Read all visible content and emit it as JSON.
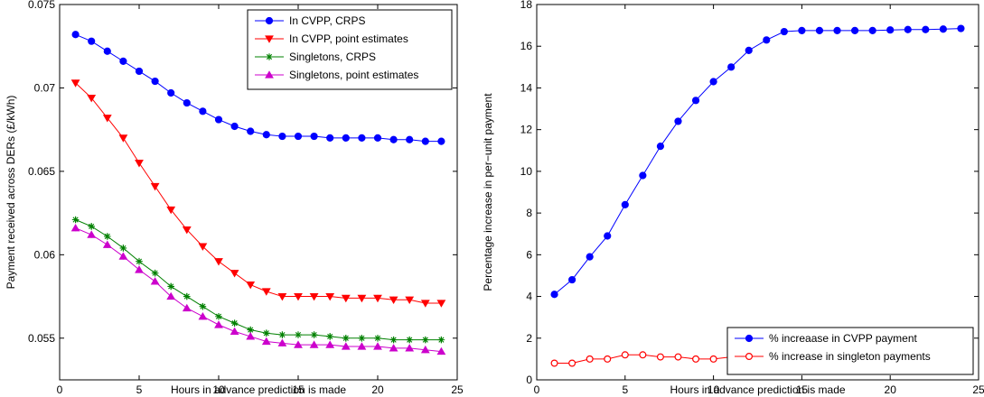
{
  "chart_data": [
    {
      "type": "line",
      "xlabel": "Hours in advance prediction is made",
      "ylabel": "Payment received across DERs (£/kWh)",
      "xlim": [
        0,
        25
      ],
      "ylim": [
        0.0525,
        0.075
      ],
      "xticks": [
        0,
        5,
        10,
        15,
        20,
        25
      ],
      "yticks": [
        0.055,
        0.06,
        0.065,
        0.07,
        0.075
      ],
      "ytick_labels": [
        "0.055",
        "0.06",
        "0.065",
        "0.07",
        "0.075"
      ],
      "grid": false,
      "legend_position": "top-right",
      "x": [
        1,
        2,
        3,
        4,
        5,
        6,
        7,
        8,
        9,
        10,
        11,
        12,
        13,
        14,
        15,
        16,
        17,
        18,
        19,
        20,
        21,
        22,
        23,
        24
      ],
      "series": [
        {
          "name": "In CVPP, CRPS",
          "color": "#0000ff",
          "marker": "circle",
          "values": [
            0.0732,
            0.0728,
            0.0722,
            0.0716,
            0.071,
            0.0704,
            0.0697,
            0.0691,
            0.0686,
            0.0681,
            0.0677,
            0.0674,
            0.0672,
            0.0671,
            0.0671,
            0.0671,
            0.067,
            0.067,
            0.067,
            0.067,
            0.0669,
            0.0669,
            0.0668,
            0.0668
          ]
        },
        {
          "name": "In CVPP, point estimates",
          "color": "#ff0000",
          "marker": "triangle-down",
          "values": [
            0.0703,
            0.0694,
            0.0682,
            0.067,
            0.0655,
            0.0641,
            0.0627,
            0.0615,
            0.0605,
            0.0596,
            0.0589,
            0.0582,
            0.0578,
            0.0575,
            0.0575,
            0.0575,
            0.0575,
            0.0574,
            0.0574,
            0.0574,
            0.0573,
            0.0573,
            0.0571,
            0.0571
          ]
        },
        {
          "name": "Singletons, CRPS",
          "color": "#008000",
          "marker": "star",
          "values": [
            0.0621,
            0.0617,
            0.0611,
            0.0604,
            0.0596,
            0.0589,
            0.0581,
            0.0575,
            0.0569,
            0.0563,
            0.0559,
            0.0555,
            0.0553,
            0.0552,
            0.0552,
            0.0552,
            0.0551,
            0.055,
            0.055,
            0.055,
            0.0549,
            0.0549,
            0.0549,
            0.0549
          ]
        },
        {
          "name": "Singletons, point estimates",
          "color": "#cc00cc",
          "marker": "triangle-up",
          "values": [
            0.0616,
            0.0612,
            0.0606,
            0.0599,
            0.0591,
            0.0584,
            0.0575,
            0.0568,
            0.0563,
            0.0558,
            0.0554,
            0.0551,
            0.0548,
            0.0547,
            0.0546,
            0.0546,
            0.0546,
            0.0545,
            0.0545,
            0.0545,
            0.0544,
            0.0544,
            0.0543,
            0.0542
          ]
        }
      ]
    },
    {
      "type": "line",
      "xlabel": "Hours in advance prediction is made",
      "ylabel": "Percentage increase in per−unit payment",
      "xlim": [
        0,
        25
      ],
      "ylim": [
        0,
        18
      ],
      "xticks": [
        0,
        5,
        10,
        15,
        20,
        25
      ],
      "yticks": [
        0,
        2,
        4,
        6,
        8,
        10,
        12,
        14,
        16,
        18
      ],
      "ytick_labels": [
        "0",
        "2",
        "4",
        "6",
        "8",
        "10",
        "12",
        "14",
        "16",
        "18"
      ],
      "grid": false,
      "legend_position": "lower-right",
      "x": [
        1,
        2,
        3,
        4,
        5,
        6,
        7,
        8,
        9,
        10,
        11,
        12,
        13,
        14,
        15,
        16,
        17,
        18,
        19,
        20,
        21,
        22,
        23,
        24
      ],
      "series": [
        {
          "name": "% increaase in CVPP payment",
          "color": "#0000ff",
          "marker": "circle",
          "values": [
            4.1,
            4.8,
            5.9,
            6.9,
            8.4,
            9.8,
            11.2,
            12.4,
            13.4,
            14.3,
            15.0,
            15.8,
            16.3,
            16.7,
            16.75,
            16.75,
            16.75,
            16.75,
            16.75,
            16.78,
            16.8,
            16.8,
            16.82,
            16.85
          ]
        },
        {
          "name": "% increase in singleton payments",
          "color": "#ff0000",
          "marker": "open-circle",
          "values": [
            0.8,
            0.8,
            1.0,
            1.0,
            1.2,
            1.2,
            1.1,
            1.1,
            1.0,
            1.0,
            1.1,
            0.9,
            1.0,
            0.9,
            1.1,
            1.1,
            1.1,
            0.9,
            0.9,
            1.0,
            0.9,
            1.1,
            1.2,
            1.2
          ]
        }
      ]
    }
  ]
}
